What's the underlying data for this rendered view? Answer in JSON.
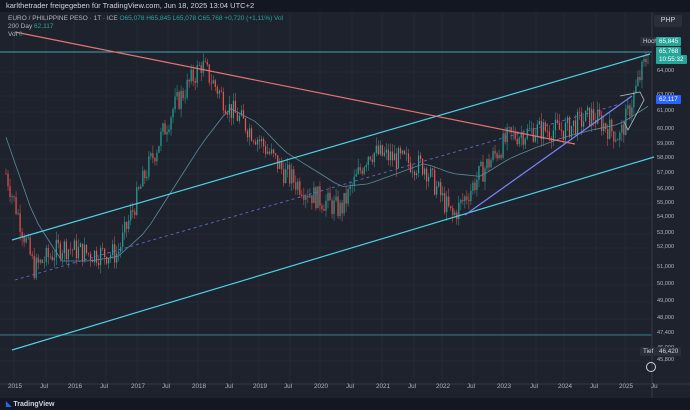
{
  "header": {
    "attribution": "karlthetrader freigegeben für TradingView.com, Jun 18, 2025 13:04 UTC+2"
  },
  "legend": {
    "symbol": "EURO / PHILIPPINE PESO · 1T · ICE",
    "ohlc": "O65,078  H65,845  L65,078  C65,768  +0,720 (+1,11%)  Vol",
    "ma_label": "200 Day",
    "ma_value": "62,117",
    "vol_label": "Vol",
    "vol_value": "0"
  },
  "currency_button": "PHP",
  "price_axis": {
    "labels": [
      "64,000",
      "63,000",
      "61,000",
      "60,000",
      "59,000",
      "58,000",
      "57,000",
      "56,000",
      "55,000",
      "54,000",
      "53,000",
      "52,000",
      "51,000",
      "50,000",
      "49,000",
      "48,000",
      "47,400",
      "46,000",
      "45,800"
    ]
  },
  "price_tags": {
    "high_label": "Hoch",
    "high_value": "65,845",
    "last_value": "65,768",
    "countdown": "10:55:32",
    "ma_tag": "62,117",
    "low_label": "Tief",
    "low_value": "46,420"
  },
  "time_axis": [
    "2015",
    "Jul",
    "2016",
    "Jul",
    "2017",
    "Jul",
    "2018",
    "Jul",
    "2019",
    "Jul",
    "2020",
    "Jul",
    "2021",
    "Jul",
    "2022",
    "Jul",
    "2023",
    "Jul",
    "2024",
    "Jul",
    "2025",
    "Ju"
  ],
  "footer": {
    "logo": "TradingView"
  },
  "colors": {
    "up": "#26a69a",
    "down": "#ef5350",
    "channel": "#4dd0e1",
    "trend_down": "#e57373",
    "trend_up": "#7c83fd",
    "ma": "#5b8a9a"
  },
  "chart_data": {
    "type": "line",
    "title": "EURO / PHILIPPINE PESO · 1T · ICE",
    "x": [
      "2015-01",
      "2015-07",
      "2016-01",
      "2016-07",
      "2017-01",
      "2017-07",
      "2018-01",
      "2018-04",
      "2018-07",
      "2019-01",
      "2019-07",
      "2020-01",
      "2020-07",
      "2021-01",
      "2021-07",
      "2022-01",
      "2022-07",
      "2023-01",
      "2023-07",
      "2024-01",
      "2024-07",
      "2025-01",
      "2025-03",
      "2025-06"
    ],
    "series": [
      {
        "name": "EURO / PHILIPPINE PESO",
        "values": [
          57.5,
          51.0,
          52.5,
          52.0,
          52.0,
          57.5,
          62.0,
          65.0,
          62.0,
          60.0,
          57.5,
          56.0,
          55.0,
          59.0,
          58.5,
          58.0,
          54.5,
          57.5,
          60.0,
          60.5,
          60.5,
          61.5,
          60.0,
          65.768
        ]
      },
      {
        "name": "200 Day",
        "values": [
          60.0,
          54.5,
          51.5,
          51.5,
          51.8,
          53.5,
          56.5,
          59.5,
          62.0,
          61.0,
          59.0,
          57.8,
          56.6,
          56.8,
          57.5,
          58.2,
          57.5,
          57.3,
          58.5,
          59.3,
          60.0,
          60.5,
          60.9,
          62.117
        ]
      }
    ],
    "ylim": [
      45.8,
      66.5
    ],
    "high": 65.845,
    "low": 46.42
  }
}
